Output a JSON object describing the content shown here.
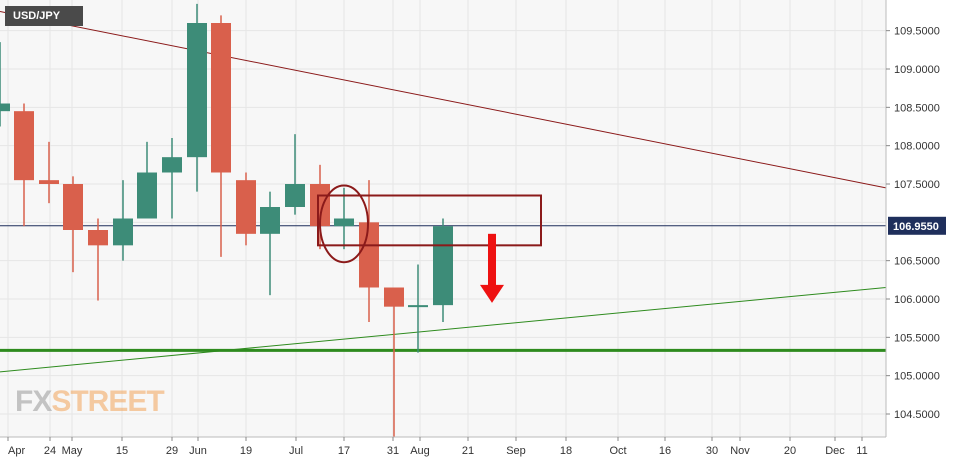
{
  "symbol": "USD/JPY",
  "logo": {
    "part1": "FX",
    "part2": "STREET"
  },
  "current_price_label": "106.9550",
  "colors": {
    "up": "#3d8c78",
    "down": "#d9604c",
    "resistance": "#8b1a1a",
    "support": "#2e8b1e",
    "price_line": "#1f2f5c",
    "marker": "#8b1a1a",
    "arrow": "#ee1111",
    "background": "#f7f7f7"
  },
  "chart_data": {
    "type": "candlestick",
    "title": "USD/JPY",
    "timeframe": "weekly",
    "ylim": [
      104.2,
      109.9
    ],
    "y_ticks": [
      "109.5000",
      "109.0000",
      "108.5000",
      "108.0000",
      "107.5000",
      "106.5000",
      "106.0000",
      "105.5000",
      "105.0000",
      "104.5000"
    ],
    "x_ticks": [
      "Apr",
      "24",
      "May",
      "15",
      "29",
      "Jun",
      "19",
      "Jul",
      "17",
      "31",
      "Aug",
      "21",
      "Sep",
      "18",
      "Oct",
      "16",
      "30",
      "Nov",
      "20",
      "Dec",
      "11"
    ],
    "current_price": 106.955,
    "candles": [
      {
        "o": 108.45,
        "h": 109.35,
        "l": 108.25,
        "c": 108.55
      },
      {
        "o": 108.45,
        "h": 108.55,
        "l": 106.95,
        "c": 107.55
      },
      {
        "o": 107.55,
        "h": 108.05,
        "l": 107.25,
        "c": 107.5
      },
      {
        "o": 107.5,
        "h": 107.6,
        "l": 106.35,
        "c": 106.9
      },
      {
        "o": 106.9,
        "h": 107.05,
        "l": 105.98,
        "c": 106.7
      },
      {
        "o": 106.7,
        "h": 107.55,
        "l": 106.5,
        "c": 107.05
      },
      {
        "o": 107.05,
        "h": 108.05,
        "l": 107.05,
        "c": 107.65
      },
      {
        "o": 107.65,
        "h": 108.1,
        "l": 107.05,
        "c": 107.85
      },
      {
        "o": 107.85,
        "h": 109.85,
        "l": 107.4,
        "c": 109.6
      },
      {
        "o": 109.6,
        "h": 109.7,
        "l": 106.55,
        "c": 107.65
      },
      {
        "o": 107.55,
        "h": 107.65,
        "l": 106.7,
        "c": 106.85
      },
      {
        "o": 106.85,
        "h": 107.4,
        "l": 106.05,
        "c": 107.2
      },
      {
        "o": 107.2,
        "h": 108.15,
        "l": 107.1,
        "c": 107.5
      },
      {
        "o": 107.5,
        "h": 107.75,
        "l": 106.65,
        "c": 106.95
      },
      {
        "o": 106.95,
        "h": 107.45,
        "l": 106.65,
        "c": 107.05
      },
      {
        "o": 107.0,
        "h": 107.55,
        "l": 105.7,
        "c": 106.15
      },
      {
        "o": 106.15,
        "h": 106.15,
        "l": 104.2,
        "c": 105.9
      },
      {
        "o": 105.9,
        "h": 106.45,
        "l": 105.3,
        "c": 105.92
      },
      {
        "o": 105.92,
        "h": 107.05,
        "l": 105.7,
        "c": 106.95
      }
    ],
    "trendlines": [
      {
        "name": "resistance",
        "from": {
          "x": 0,
          "y": 109.75
        },
        "to": {
          "x": "end",
          "y": 107.45
        }
      },
      {
        "name": "support-rising",
        "from": {
          "x": 0,
          "y": 105.05
        },
        "to": {
          "x": "end",
          "y": 106.15
        }
      },
      {
        "name": "support-horizontal",
        "y": 105.33
      }
    ],
    "annotations": {
      "box": {
        "from_candle": 13,
        "to_x": "Sep",
        "y_top": 107.35,
        "y_bottom": 106.7
      },
      "ellipse": {
        "candle": 14,
        "y_center": 106.98,
        "y_radius": 0.5
      },
      "arrow": {
        "direction": "down",
        "x": "Aug 28",
        "y_from": 106.85,
        "y_to": 105.95
      }
    },
    "grid": true,
    "y_axis_position": "right"
  }
}
